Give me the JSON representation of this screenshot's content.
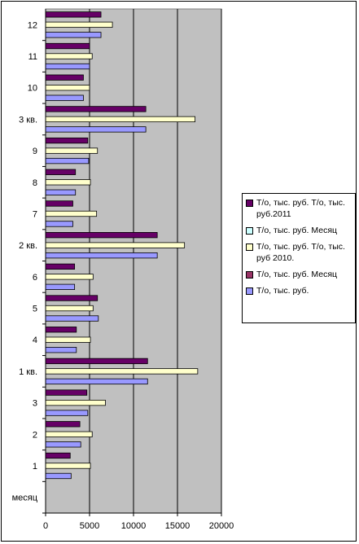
{
  "chart_data": {
    "type": "bar",
    "orientation": "horizontal",
    "categories": [
      "месяц",
      "1",
      "2",
      "3",
      "1 кв.",
      "4",
      "5",
      "6",
      "2 кв.",
      "7",
      "8",
      "9",
      "3 кв.",
      "10",
      "11",
      "12"
    ],
    "series": [
      {
        "name": "Т/о, тыс. руб.",
        "color": "#9999ff",
        "values": [
          null,
          2900,
          4000,
          4800,
          11600,
          3500,
          6000,
          3300,
          12700,
          3100,
          3400,
          4900,
          11400,
          4300,
          5000,
          6300
        ]
      },
      {
        "name": "Т/о, тыс. руб. Месяц",
        "color": "#993366",
        "values": [
          null,
          null,
          null,
          null,
          null,
          null,
          null,
          null,
          null,
          null,
          null,
          null,
          null,
          null,
          null,
          null
        ]
      },
      {
        "name": "Т/о, тыс. руб. Т/о, тыс. руб 2010.",
        "color": "#ffffcc",
        "values": [
          null,
          5100,
          5300,
          6800,
          17300,
          5100,
          5400,
          5400,
          15800,
          5800,
          5100,
          5900,
          17000,
          5000,
          5300,
          7600
        ]
      },
      {
        "name": "Т/о, тыс. руб. Месяц",
        "color": "#ccffff",
        "values": [
          null,
          null,
          null,
          null,
          null,
          null,
          null,
          null,
          null,
          null,
          null,
          null,
          null,
          null,
          null,
          null
        ]
      },
      {
        "name": "Т/о, тыс. руб. Т/о, тыс. руб.2011",
        "color": "#660066",
        "values": [
          null,
          2800,
          3900,
          4700,
          11600,
          3500,
          5900,
          3300,
          12700,
          3100,
          3400,
          4800,
          11400,
          4300,
          5000,
          6300
        ]
      }
    ],
    "x_ticks": [
      "0",
      "5000",
      "10000",
      "15000",
      "20000"
    ],
    "xlim": [
      0,
      20000
    ],
    "grid": "vertical",
    "plot_background": "#c0c0c0",
    "legend_position": "right"
  },
  "legend_entries": [
    {
      "label": "Т/о, тыс. руб. Т/о, тыс. руб.2011",
      "color": "#660066"
    },
    {
      "label": "Т/о, тыс. руб. Месяц",
      "color": "#ccffff"
    },
    {
      "label": "Т/о, тыс. руб. Т/о, тыс. руб 2010.",
      "color": "#ffffcc"
    },
    {
      "label": "Т/о, тыс. руб. Месяц",
      "color": "#993366"
    },
    {
      "label": "Т/о, тыс. руб.",
      "color": "#9999ff"
    }
  ]
}
